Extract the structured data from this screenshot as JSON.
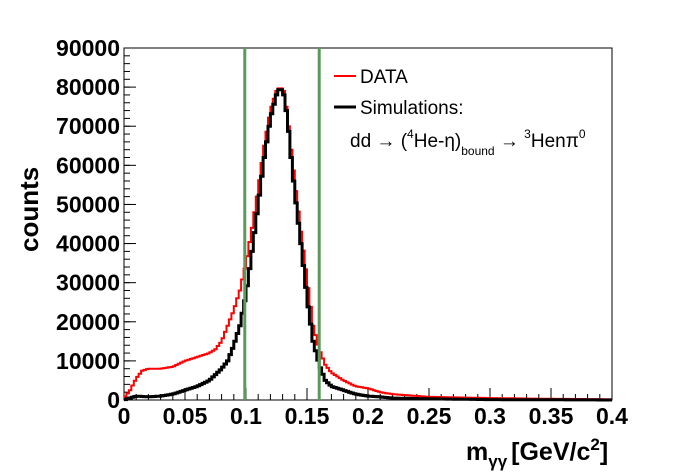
{
  "chart_data": {
    "type": "line",
    "style": "step-histogram",
    "xlabel": "m",
    "xlabel_sub": "γγ",
    "xlabel_units": "[GeV/c",
    "xlabel_units_sup": "2",
    "xlabel_units_close": "]",
    "ylabel": "counts",
    "xlim": [
      0,
      0.4
    ],
    "ylim": [
      0,
      90000
    ],
    "x_ticks": [
      0,
      0.05,
      0.1,
      0.15,
      0.2,
      0.25,
      0.3,
      0.35,
      0.4
    ],
    "x_tick_labels": [
      "0",
      "0.05",
      "0.1",
      "0.15",
      "0.2",
      "0.25",
      "0.3",
      "0.35",
      "0.4"
    ],
    "y_ticks": [
      0,
      10000,
      20000,
      30000,
      40000,
      50000,
      60000,
      70000,
      80000,
      90000
    ],
    "y_tick_labels": [
      "0",
      "10000",
      "20000",
      "30000",
      "40000",
      "50000",
      "60000",
      "70000",
      "80000",
      "90000"
    ],
    "vertical_lines": [
      0.099,
      0.16
    ],
    "series": [
      {
        "name": "DATA",
        "color": "#ff0000",
        "x": [
          0.0,
          0.005,
          0.01,
          0.015,
          0.02,
          0.025,
          0.03,
          0.04,
          0.05,
          0.06,
          0.07,
          0.075,
          0.08,
          0.085,
          0.09,
          0.095,
          0.1,
          0.105,
          0.11,
          0.115,
          0.12,
          0.125,
          0.128,
          0.131,
          0.134,
          0.137,
          0.14,
          0.145,
          0.15,
          0.155,
          0.16,
          0.165,
          0.17,
          0.175,
          0.18,
          0.19,
          0.2,
          0.21,
          0.22,
          0.25,
          0.3,
          0.35,
          0.4
        ],
        "y": [
          500,
          2500,
          5500,
          7500,
          8000,
          8000,
          8000,
          8500,
          10000,
          11000,
          12000,
          13000,
          15000,
          19000,
          23000,
          28000,
          35000,
          44000,
          54000,
          65000,
          74000,
          79000,
          80000,
          79000,
          73000,
          64000,
          56000,
          43000,
          31000,
          19000,
          13000,
          9000,
          7000,
          6000,
          5000,
          3500,
          3000,
          2000,
          1500,
          800,
          500,
          300,
          200
        ]
      },
      {
        "name": "Simulations:",
        "color": "#000000",
        "x": [
          0.0,
          0.005,
          0.01,
          0.02,
          0.03,
          0.04,
          0.05,
          0.06,
          0.07,
          0.08,
          0.085,
          0.09,
          0.095,
          0.1,
          0.105,
          0.11,
          0.115,
          0.12,
          0.125,
          0.128,
          0.131,
          0.134,
          0.137,
          0.14,
          0.145,
          0.15,
          0.155,
          0.16,
          0.165,
          0.17,
          0.18,
          0.19,
          0.2,
          0.21,
          0.22,
          0.25,
          0.3,
          0.35,
          0.4
        ],
        "y": [
          0,
          500,
          1000,
          800,
          1000,
          1500,
          2500,
          3500,
          5000,
          8000,
          10000,
          14000,
          19000,
          27000,
          38000,
          50000,
          62000,
          72000,
          78000,
          80000,
          78000,
          72000,
          62000,
          53000,
          40000,
          26000,
          15000,
          9000,
          5000,
          3500,
          2500,
          1500,
          1000,
          800,
          500,
          300,
          100,
          50,
          0
        ]
      }
    ],
    "legend": {
      "placement": "top-right",
      "entries": [
        "DATA",
        "Simulations:"
      ],
      "formula": {
        "prefix": "dd → (",
        "sup1": "4",
        "mid": "He-η)",
        "sub": "bound",
        "arrow": " → ",
        "sup2": "3",
        "tail": "Henπ",
        "sup3": "0"
      }
    },
    "colors": {
      "data": "#ff0000",
      "simulation": "#000000",
      "cut_lines": "#5a9a5a",
      "frame": "#000000"
    }
  }
}
